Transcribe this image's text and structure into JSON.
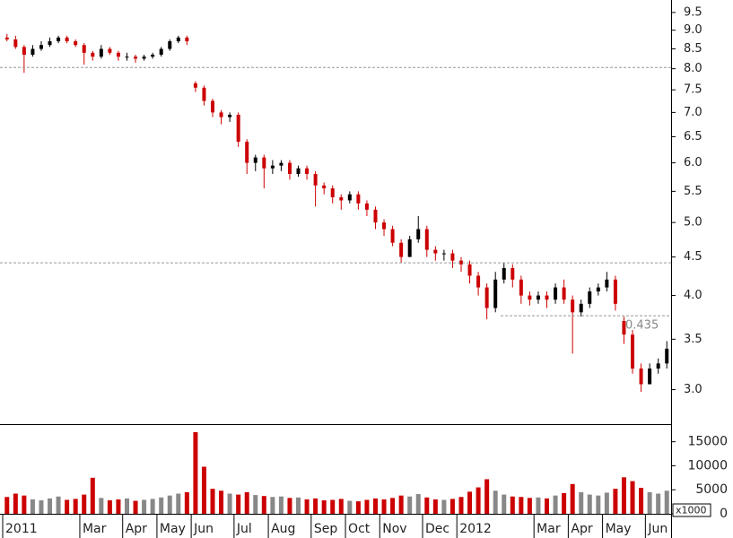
{
  "chart_data": [
    {
      "type": "candlestick",
      "categories": [
        "2011",
        null,
        null,
        null,
        null,
        null,
        null,
        null,
        null,
        "Mar",
        null,
        null,
        null,
        null,
        "Apr",
        null,
        null,
        null,
        "May",
        null,
        null,
        null,
        "Jun",
        null,
        null,
        null,
        null,
        "Jul",
        null,
        null,
        null,
        "Aug",
        null,
        null,
        null,
        null,
        "Sep",
        null,
        null,
        null,
        "Oct",
        null,
        null,
        null,
        "Nov",
        null,
        null,
        null,
        null,
        "Dec",
        null,
        null,
        null,
        "2012",
        null,
        null,
        null,
        null,
        null,
        null,
        null,
        null,
        "Mar",
        null,
        null,
        null,
        "Apr",
        null,
        null,
        null,
        "May",
        null,
        null,
        null,
        null,
        "Jun",
        null,
        null
      ],
      "open": [
        8.8,
        8.75,
        8.55,
        8.35,
        8.5,
        8.6,
        8.7,
        8.8,
        8.7,
        8.6,
        8.4,
        8.3,
        8.5,
        8.4,
        8.3,
        8.3,
        8.25,
        8.3,
        8.35,
        8.5,
        8.7,
        8.8,
        7.65,
        7.55,
        7.25,
        7.0,
        6.9,
        6.95,
        6.4,
        6.0,
        6.1,
        5.9,
        5.95,
        6.0,
        5.8,
        5.9,
        5.8,
        5.6,
        5.55,
        5.4,
        5.35,
        5.45,
        5.3,
        5.2,
        5.0,
        4.9,
        4.7,
        4.5,
        4.75,
        4.9,
        4.6,
        4.55,
        4.55,
        4.45,
        4.4,
        4.25,
        4.1,
        3.85,
        4.2,
        4.35,
        4.2,
        4.0,
        3.95,
        4.0,
        3.95,
        4.1,
        3.95,
        3.8,
        3.9,
        4.05,
        4.1,
        4.2,
        3.7,
        3.55,
        3.2,
        3.05,
        3.2,
        3.25
      ],
      "high": [
        8.9,
        8.85,
        8.6,
        8.6,
        8.7,
        8.8,
        8.85,
        8.85,
        8.75,
        8.65,
        8.45,
        8.6,
        8.55,
        8.45,
        8.4,
        8.35,
        8.35,
        8.4,
        8.55,
        8.75,
        8.85,
        8.85,
        7.7,
        7.6,
        7.3,
        7.05,
        7.0,
        7.0,
        6.45,
        6.15,
        6.15,
        6.05,
        6.05,
        6.05,
        5.95,
        5.95,
        5.85,
        5.65,
        5.6,
        5.45,
        5.5,
        5.5,
        5.35,
        5.25,
        5.05,
        4.95,
        4.75,
        4.8,
        5.1,
        4.95,
        4.65,
        4.6,
        4.6,
        4.5,
        4.45,
        4.3,
        4.15,
        4.3,
        4.42,
        4.4,
        4.25,
        4.05,
        4.05,
        4.05,
        4.15,
        4.2,
        4.0,
        3.95,
        4.1,
        4.15,
        4.3,
        4.25,
        3.75,
        3.6,
        3.25,
        3.25,
        3.3,
        3.48
      ],
      "low": [
        8.7,
        8.5,
        7.9,
        8.3,
        8.45,
        8.55,
        8.65,
        8.65,
        8.55,
        8.1,
        8.2,
        8.25,
        8.35,
        8.2,
        8.2,
        8.15,
        8.2,
        8.25,
        8.3,
        8.45,
        8.65,
        8.6,
        7.45,
        7.15,
        6.9,
        6.75,
        6.8,
        6.3,
        5.8,
        5.85,
        5.55,
        5.8,
        5.85,
        5.7,
        5.75,
        5.7,
        5.25,
        5.45,
        5.3,
        5.2,
        5.3,
        5.2,
        5.1,
        4.9,
        4.8,
        4.65,
        4.42,
        4.5,
        4.7,
        4.5,
        4.45,
        4.45,
        4.35,
        4.3,
        4.15,
        4.0,
        3.72,
        3.8,
        4.15,
        4.1,
        3.9,
        3.88,
        3.9,
        3.85,
        3.9,
        3.9,
        3.35,
        3.75,
        3.85,
        4.0,
        4.05,
        3.82,
        3.45,
        3.15,
        2.98,
        3.05,
        3.15,
        3.2
      ],
      "close": [
        8.75,
        8.55,
        8.35,
        8.5,
        8.6,
        8.7,
        8.8,
        8.7,
        8.6,
        8.4,
        8.3,
        8.5,
        8.4,
        8.3,
        8.3,
        8.25,
        8.3,
        8.35,
        8.5,
        8.7,
        8.8,
        8.7,
        7.55,
        7.25,
        7.0,
        6.9,
        6.95,
        6.4,
        6.0,
        6.1,
        5.9,
        5.95,
        6.0,
        5.8,
        5.9,
        5.8,
        5.6,
        5.55,
        5.4,
        5.35,
        5.45,
        5.3,
        5.2,
        5.0,
        4.9,
        4.7,
        4.5,
        4.75,
        4.9,
        4.6,
        4.55,
        4.55,
        4.45,
        4.4,
        4.25,
        4.1,
        3.85,
        4.2,
        4.35,
        4.2,
        4.0,
        3.95,
        4.0,
        3.95,
        4.1,
        3.95,
        3.8,
        3.9,
        4.05,
        4.1,
        4.2,
        3.9,
        3.55,
        3.2,
        3.05,
        3.2,
        3.25,
        3.4
      ],
      "up_color": "#000000",
      "down_color": "#cc0000",
      "log_scale": true,
      "ylim": [
        2.7,
        9.87
      ],
      "yticks": [
        {
          "value": 3,
          "label": "3.0"
        },
        3.5,
        {
          "value": 4,
          "label": "4.0"
        },
        4.5,
        {
          "value": 5,
          "label": "5.0"
        },
        5.5,
        {
          "value": 6,
          "label": "6.0"
        },
        6.5,
        {
          "value": 7,
          "label": "7.0"
        },
        7.5,
        {
          "value": 8,
          "label": "8.0"
        },
        8.5,
        {
          "value": 9,
          "label": "9.0"
        },
        9.5
      ],
      "hlines": [
        {
          "value": 8.03
        },
        {
          "value": 4.42
        },
        {
          "value": 3.76,
          "label": "0.435"
        }
      ]
    },
    {
      "type": "bar",
      "values": [
        3500,
        4200,
        3800,
        3000,
        2800,
        3200,
        3600,
        2900,
        3100,
        4000,
        7500,
        3300,
        2800,
        3000,
        3200,
        2700,
        2900,
        3100,
        3400,
        3800,
        4200,
        4500,
        17000,
        9800,
        5200,
        4800,
        4200,
        4000,
        4500,
        3900,
        3700,
        3500,
        3600,
        3300,
        3400,
        3000,
        3200,
        2800,
        2900,
        3100,
        2700,
        2600,
        2900,
        3200,
        3000,
        3300,
        3800,
        3600,
        4100,
        3400,
        3000,
        2900,
        3100,
        3500,
        4600,
        5500,
        7200,
        4800,
        4000,
        3600,
        3500,
        3300,
        3400,
        3200,
        3800,
        4300,
        6200,
        4500,
        4000,
        3800,
        4400,
        5200,
        7600,
        6800,
        5400,
        4500,
        4200,
        4800
      ],
      "up_color": "#888888",
      "down_color": "#cc0000",
      "ylim": [
        0,
        18300
      ],
      "yticks": [
        0,
        5000,
        10000,
        15000
      ],
      "unit_label": "x1000"
    }
  ]
}
